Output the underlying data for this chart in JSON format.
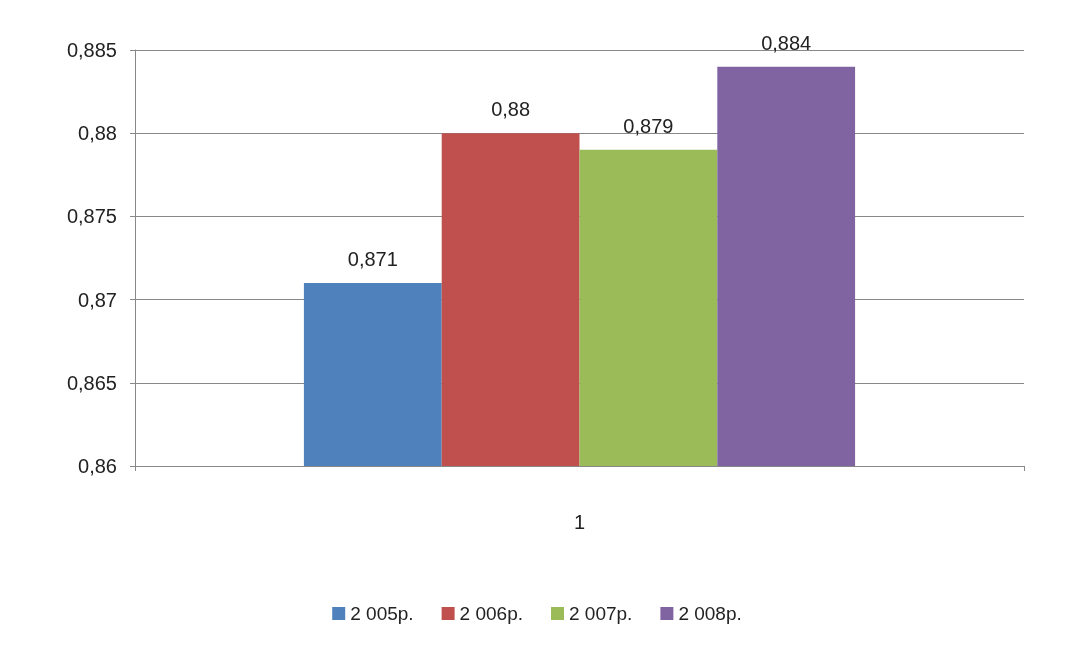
{
  "chart_data": {
    "type": "bar",
    "categories": [
      "1"
    ],
    "series": [
      {
        "name": "2 005р.",
        "color": "#4f81bd",
        "values": [
          0.871
        ],
        "value_labels": [
          "0,871"
        ]
      },
      {
        "name": "2 006р.",
        "color": "#c0504d",
        "values": [
          0.88
        ],
        "value_labels": [
          "0,88"
        ]
      },
      {
        "name": "2 007р.",
        "color": "#9bbb59",
        "values": [
          0.879
        ],
        "value_labels": [
          "0,879"
        ]
      },
      {
        "name": "2 008р.",
        "color": "#8064a2",
        "values": [
          0.884
        ],
        "value_labels": [
          "0,884"
        ]
      }
    ],
    "ylim": [
      0.86,
      0.885
    ],
    "yticks": [
      {
        "value": 0.86,
        "label": "0,86"
      },
      {
        "value": 0.865,
        "label": "0,865"
      },
      {
        "value": 0.87,
        "label": "0,87"
      },
      {
        "value": 0.875,
        "label": "0,875"
      },
      {
        "value": 0.88,
        "label": "0,88"
      },
      {
        "value": 0.885,
        "label": "0,885"
      }
    ],
    "grid": "y",
    "legend": "bottom"
  }
}
